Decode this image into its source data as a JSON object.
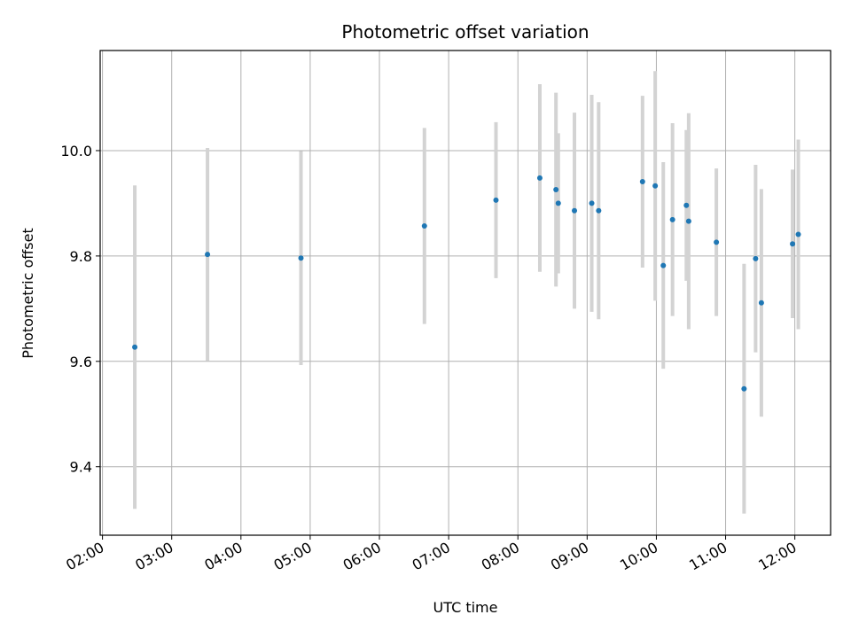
{
  "chart_data": {
    "type": "scatter",
    "title": "Photometric offset variation",
    "xlabel": "UTC time",
    "ylabel": "Photometric offset",
    "x_ticks": [
      "02:00",
      "03:00",
      "04:00",
      "05:00",
      "06:00",
      "07:00",
      "08:00",
      "09:00",
      "10:00",
      "11:00",
      "12:00"
    ],
    "y_ticks": [
      "9.4",
      "9.6",
      "9.8",
      "10.0"
    ],
    "xlim": [
      "01:58",
      "12:31"
    ],
    "ylim": [
      9.27,
      10.19
    ],
    "grid": true,
    "colors": {
      "point": "#1f77b4",
      "errorbar": "#d3d3d3",
      "grid": "#b0b0b0",
      "axis": "#000000"
    },
    "points": [
      {
        "x": "02:28",
        "y": 9.627,
        "err": 0.307
      },
      {
        "x": "03:31",
        "y": 9.803,
        "err": 0.202
      },
      {
        "x": "04:52",
        "y": 9.796,
        "err": 0.203
      },
      {
        "x": "06:39",
        "y": 9.857,
        "err": 0.186
      },
      {
        "x": "07:41",
        "y": 9.906,
        "err": 0.148
      },
      {
        "x": "08:19",
        "y": 9.948,
        "err": 0.178
      },
      {
        "x": "08:33",
        "y": 9.926,
        "err": 0.184
      },
      {
        "x": "08:35",
        "y": 9.9,
        "err": 0.133
      },
      {
        "x": "08:49",
        "y": 9.886,
        "err": 0.186
      },
      {
        "x": "09:04",
        "y": 9.9,
        "err": 0.206
      },
      {
        "x": "09:10",
        "y": 9.886,
        "err": 0.206
      },
      {
        "x": "09:48",
        "y": 9.941,
        "err": 0.163
      },
      {
        "x": "09:59",
        "y": 9.933,
        "err": 0.218
      },
      {
        "x": "10:06",
        "y": 9.782,
        "err": 0.196
      },
      {
        "x": "10:14",
        "y": 9.869,
        "err": 0.183
      },
      {
        "x": "10:26",
        "y": 9.896,
        "err": 0.143
      },
      {
        "x": "10:28",
        "y": 9.866,
        "err": 0.205
      },
      {
        "x": "10:52",
        "y": 9.826,
        "err": 0.14
      },
      {
        "x": "11:16",
        "y": 9.548,
        "err": 0.237
      },
      {
        "x": "11:26",
        "y": 9.795,
        "err": 0.178
      },
      {
        "x": "11:31",
        "y": 9.711,
        "err": 0.216
      },
      {
        "x": "11:58",
        "y": 9.823,
        "err": 0.141
      },
      {
        "x": "12:03",
        "y": 9.841,
        "err": 0.18
      }
    ]
  }
}
